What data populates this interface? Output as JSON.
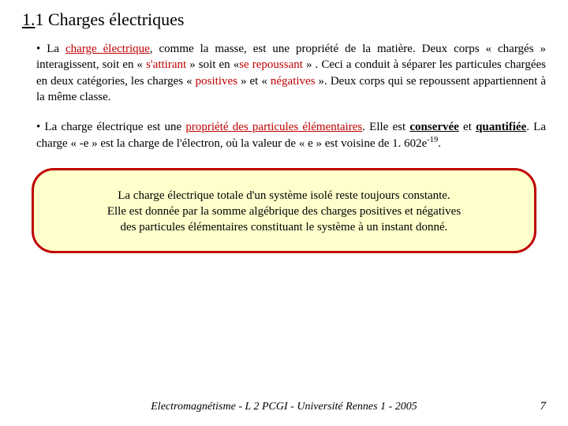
{
  "heading": {
    "prefix": "1.",
    "rest": "1 Charges électriques"
  },
  "p1": {
    "t1": "• La ",
    "t2": "charge électrique",
    "t3": ", comme la masse, est une propriété de la matière. Deux corps « chargés » interagissent, soit en « ",
    "t4": "s'attirant",
    "t5": " » soit en  «",
    "t6": "se repoussant",
    "t7": " » . Ceci a conduit à séparer les particules chargées en deux catégories, les charges  « ",
    "t8": "positives",
    "t9": " »  et  « ",
    "t10": "négatives",
    "t11": " ».  Deux  corps  qui  se  repoussent appartiennent à la même classe."
  },
  "p2": {
    "t1": "• La charge électrique est une ",
    "t2": "propriété des particules élémentaires",
    "t3": ". Elle est ",
    "t4": "conservée",
    "t5": " et ",
    "t6": "quantifiée",
    "t7": ". La charge « -e » est la charge de l'électron, où la valeur de « e » est voisine de 1. 602e",
    "t8": "-19",
    "t9": "."
  },
  "box": {
    "l1": "La charge électrique totale d'un système isolé reste toujours constante.",
    "l2": "Elle est donnée par la somme algébrique des charges positives et négatives",
    "l3": "des particules élémentaires constituant le système à un instant donné."
  },
  "footer": "Electromagnétisme - L 2 PCGI - Université Rennes 1 - 2005",
  "pagenum": "7",
  "colors": {
    "accent": "#c00000",
    "box_bg": "#ffffcc",
    "text": "#000000",
    "bg": "#ffffff"
  }
}
